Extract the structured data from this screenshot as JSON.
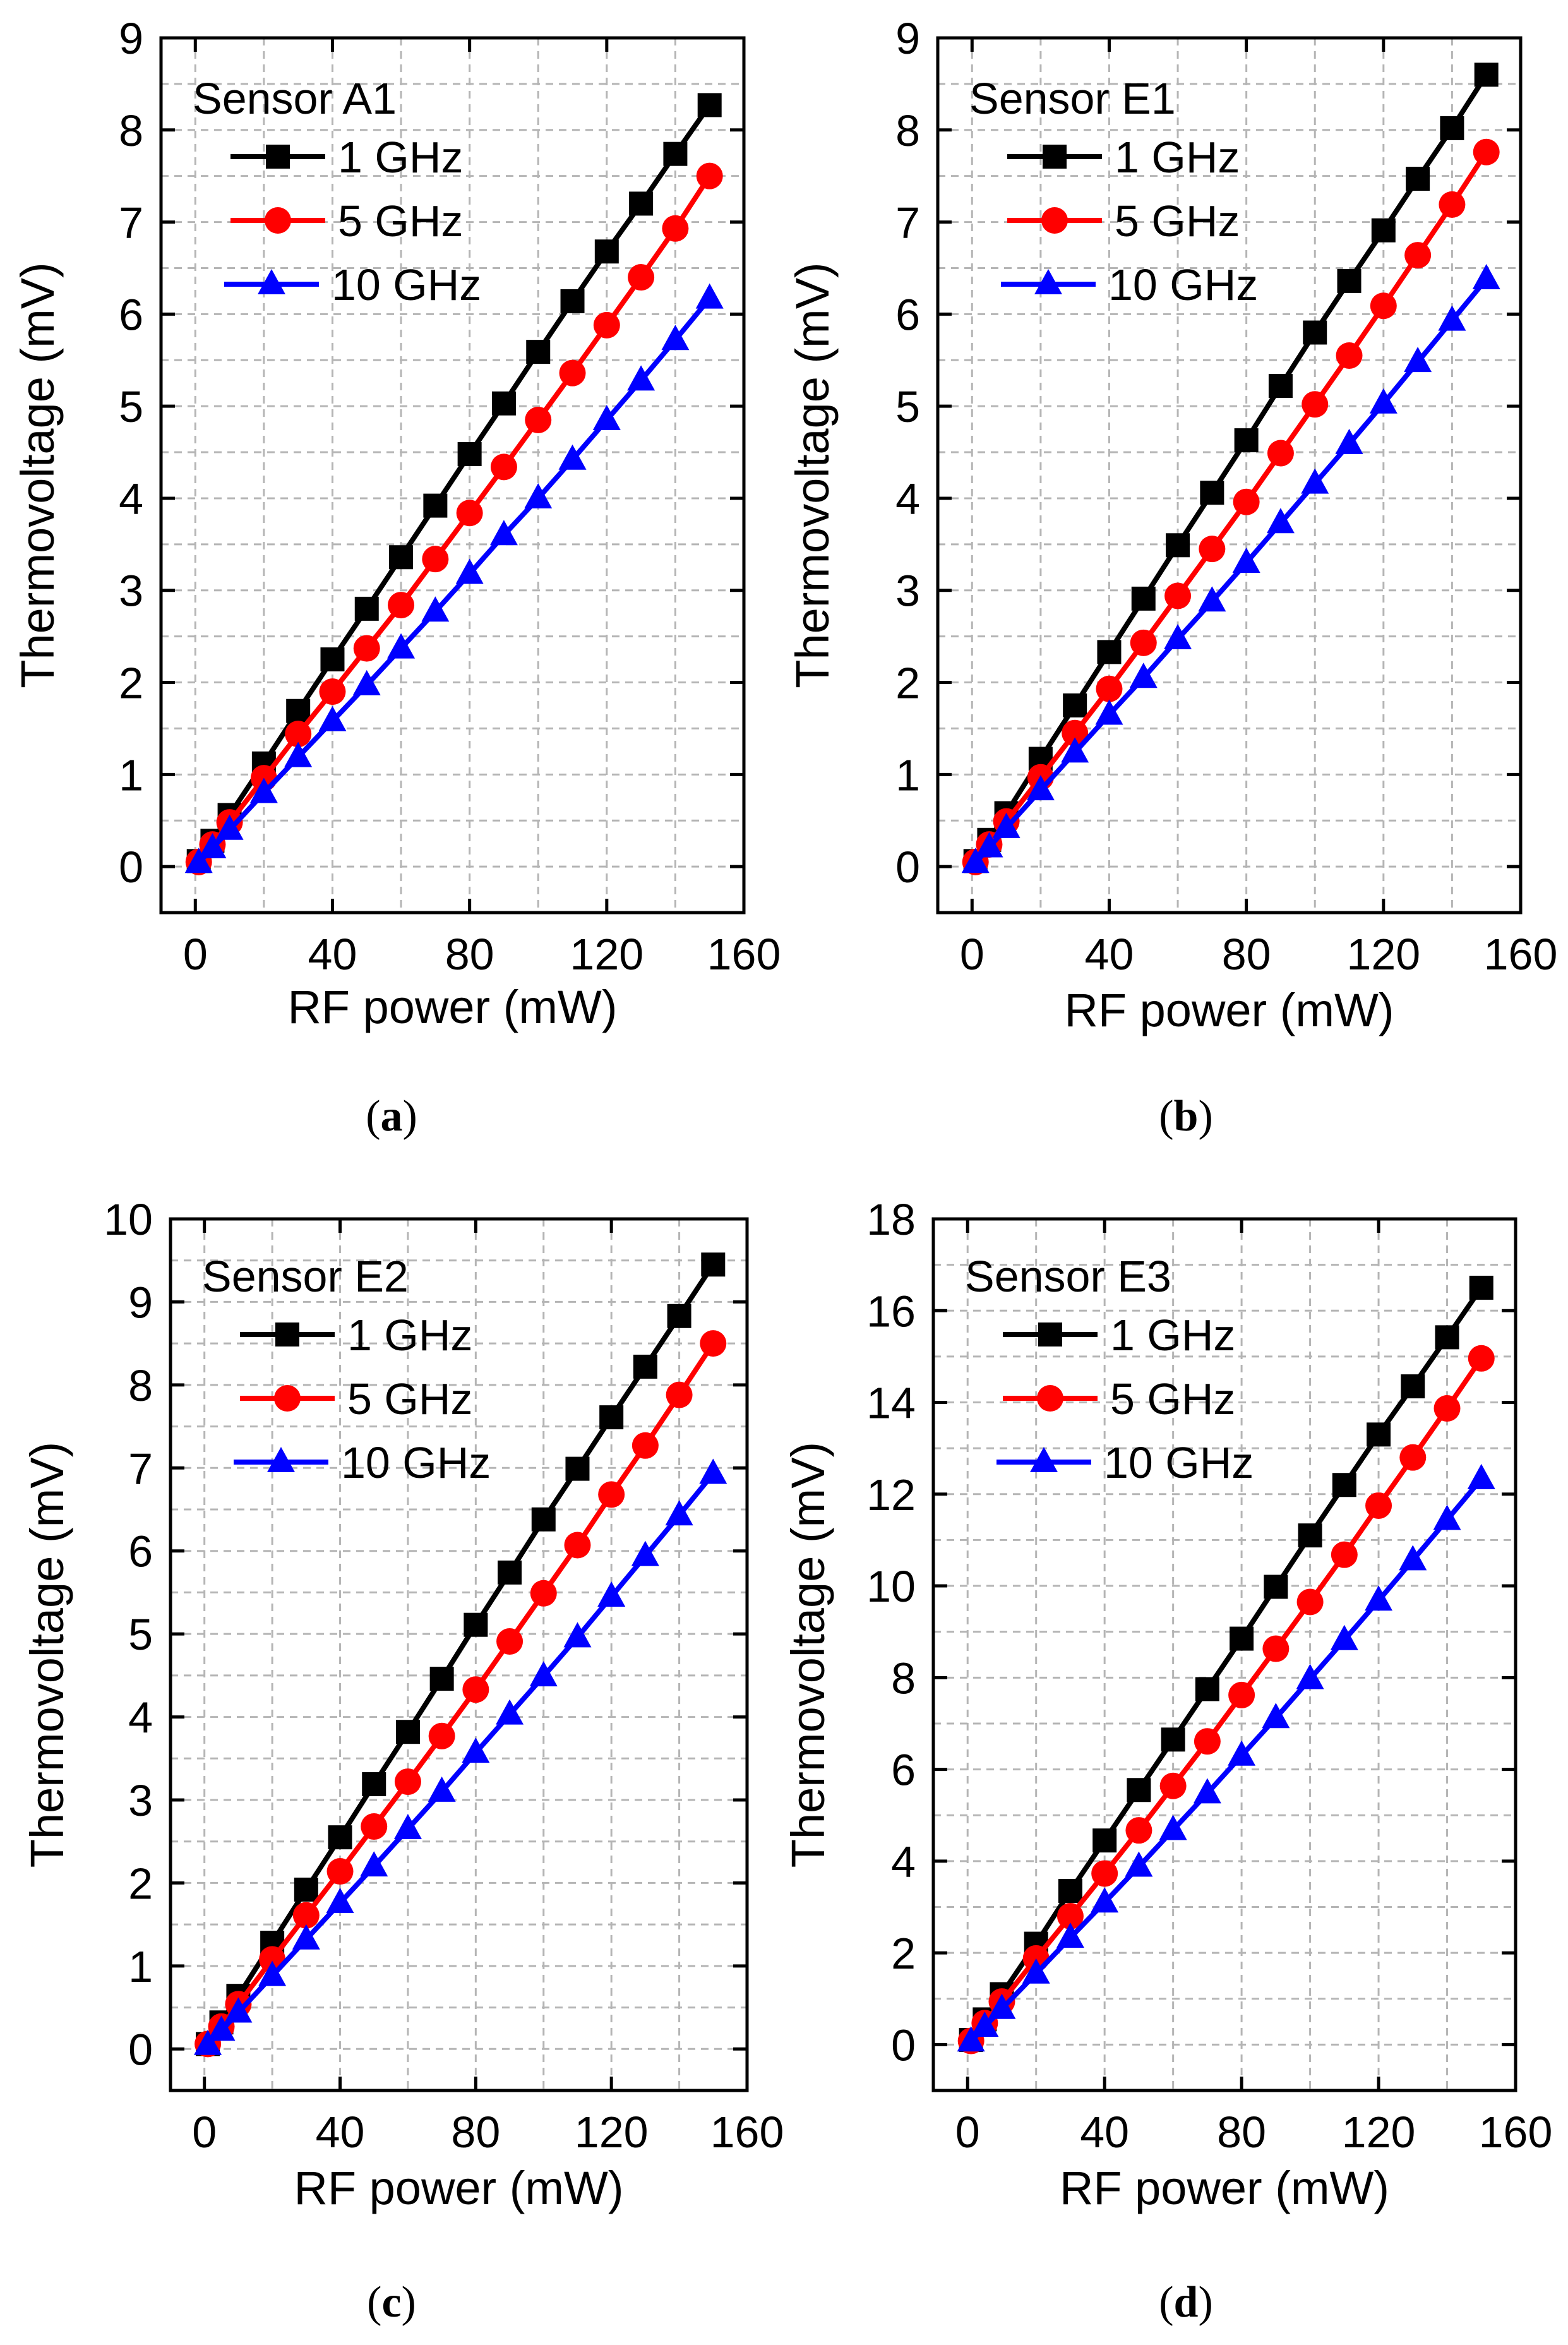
{
  "figure": {
    "panels": [
      "a",
      "b",
      "c",
      "d"
    ]
  },
  "chart_data": [
    {
      "type": "line",
      "panel_label": "(a)",
      "caption_letter": "a",
      "sensor": "Sensor A1",
      "xlabel": "RF power (mW)",
      "ylabel": "Thermovoltage (mV)",
      "xlim": [
        -10,
        160
      ],
      "ylim": [
        -0.5,
        9
      ],
      "xticks": [
        0,
        40,
        80,
        120,
        160
      ],
      "yticks": [
        0,
        1,
        2,
        3,
        4,
        5,
        6,
        7,
        8,
        9
      ],
      "x": [
        1,
        5,
        10,
        20,
        30,
        40,
        50,
        60,
        70,
        80,
        90,
        100,
        110,
        120,
        130,
        140,
        150
      ],
      "series": [
        {
          "name": "1 GHz",
          "color": "#000000",
          "marker": "square",
          "values": [
            0.06,
            0.28,
            0.56,
            1.12,
            1.69,
            2.25,
            2.8,
            3.36,
            3.92,
            4.48,
            5.03,
            5.59,
            6.14,
            6.68,
            7.2,
            7.74,
            8.27
          ]
        },
        {
          "name": "5 GHz",
          "color": "#ff0000",
          "marker": "circle",
          "values": [
            0.05,
            0.24,
            0.48,
            0.96,
            1.44,
            1.9,
            2.37,
            2.84,
            3.34,
            3.84,
            4.34,
            4.85,
            5.36,
            5.88,
            6.4,
            6.93,
            7.5
          ]
        },
        {
          "name": "10 GHz",
          "color": "#0000ff",
          "marker": "triangle",
          "values": [
            0.04,
            0.2,
            0.4,
            0.8,
            1.19,
            1.58,
            1.97,
            2.37,
            2.77,
            3.18,
            3.6,
            4.0,
            4.42,
            4.85,
            5.28,
            5.72,
            6.17
          ]
        }
      ]
    },
    {
      "type": "line",
      "panel_label": "(b)",
      "caption_letter": "b",
      "sensor": "Sensor E1",
      "xlabel": "RF power (mW)",
      "ylabel": "Thermovoltage (mV)",
      "xlim": [
        -10,
        160
      ],
      "ylim": [
        -0.5,
        9
      ],
      "xticks": [
        0,
        40,
        80,
        120,
        160
      ],
      "yticks": [
        0,
        1,
        2,
        3,
        4,
        5,
        6,
        7,
        8,
        9
      ],
      "x": [
        1,
        5,
        10,
        20,
        30,
        40,
        50,
        60,
        70,
        80,
        90,
        100,
        110,
        120,
        130,
        140,
        150
      ],
      "series": [
        {
          "name": "1 GHz",
          "color": "#000000",
          "marker": "square",
          "values": [
            0.06,
            0.29,
            0.58,
            1.17,
            1.75,
            2.33,
            2.91,
            3.49,
            4.06,
            4.63,
            5.22,
            5.8,
            6.36,
            6.91,
            7.47,
            8.02,
            8.6
          ]
        },
        {
          "name": "5 GHz",
          "color": "#ff0000",
          "marker": "circle",
          "values": [
            0.05,
            0.24,
            0.49,
            0.97,
            1.45,
            1.93,
            2.43,
            2.94,
            3.45,
            3.96,
            4.49,
            5.02,
            5.55,
            6.09,
            6.64,
            7.19,
            7.76
          ]
        },
        {
          "name": "10 GHz",
          "color": "#0000ff",
          "marker": "triangle",
          "values": [
            0.04,
            0.21,
            0.42,
            0.83,
            1.24,
            1.65,
            2.05,
            2.47,
            2.88,
            3.3,
            3.73,
            4.16,
            4.59,
            5.03,
            5.48,
            5.93,
            6.38
          ]
        }
      ]
    },
    {
      "type": "line",
      "panel_label": "(c)",
      "caption_letter": "c",
      "sensor": "Sensor E2",
      "xlabel": "RF power (mW)",
      "ylabel": "Thermovoltage (mV)",
      "xlim": [
        -10,
        160
      ],
      "ylim": [
        -0.5,
        10
      ],
      "xticks": [
        0,
        40,
        80,
        120,
        160
      ],
      "yticks": [
        0,
        1,
        2,
        3,
        4,
        5,
        6,
        7,
        8,
        9,
        10
      ],
      "x": [
        1,
        5,
        10,
        20,
        30,
        40,
        50,
        60,
        70,
        80,
        90,
        100,
        110,
        120,
        130,
        140,
        150
      ],
      "series": [
        {
          "name": "1 GHz",
          "color": "#000000",
          "marker": "square",
          "values": [
            0.06,
            0.32,
            0.64,
            1.28,
            1.92,
            2.55,
            3.19,
            3.82,
            4.46,
            5.11,
            5.74,
            6.38,
            6.99,
            7.61,
            8.22,
            8.83,
            9.45
          ]
        },
        {
          "name": "5 GHz",
          "color": "#ff0000",
          "marker": "circle",
          "values": [
            0.06,
            0.27,
            0.54,
            1.08,
            1.61,
            2.14,
            2.68,
            3.22,
            3.77,
            4.33,
            4.91,
            5.49,
            6.07,
            6.68,
            7.27,
            7.88,
            8.5
          ]
        },
        {
          "name": "10 GHz",
          "color": "#0000ff",
          "marker": "triangle",
          "values": [
            0.05,
            0.22,
            0.44,
            0.88,
            1.32,
            1.76,
            2.2,
            2.65,
            3.1,
            3.57,
            4.03,
            4.49,
            4.96,
            5.45,
            5.94,
            6.43,
            6.93
          ]
        }
      ]
    },
    {
      "type": "line",
      "panel_label": "(d)",
      "caption_letter": "d",
      "sensor": "Sensor E3",
      "xlabel": "RF power (mW)",
      "ylabel": "Thermovoltage (mV)",
      "xlim": [
        -10,
        160
      ],
      "ylim": [
        -1,
        18
      ],
      "xticks": [
        0,
        40,
        80,
        120,
        160
      ],
      "yticks": [
        0,
        2,
        4,
        6,
        8,
        10,
        12,
        14,
        16,
        18
      ],
      "x": [
        1,
        5,
        10,
        20,
        30,
        40,
        50,
        60,
        70,
        80,
        90,
        100,
        110,
        120,
        130,
        140,
        150
      ],
      "series": [
        {
          "name": "1 GHz",
          "color": "#000000",
          "marker": "square",
          "values": [
            0.1,
            0.55,
            1.1,
            2.2,
            3.35,
            4.45,
            5.55,
            6.65,
            7.75,
            8.85,
            9.98,
            11.1,
            12.2,
            13.3,
            14.35,
            15.42,
            16.5
          ]
        },
        {
          "name": "5 GHz",
          "color": "#ff0000",
          "marker": "circle",
          "values": [
            0.08,
            0.47,
            0.94,
            1.88,
            2.8,
            3.73,
            4.67,
            5.64,
            6.61,
            7.62,
            8.63,
            9.65,
            10.68,
            11.75,
            12.8,
            13.87,
            14.96
          ]
        },
        {
          "name": "10 GHz",
          "color": "#0000ff",
          "marker": "triangle",
          "values": [
            0.07,
            0.39,
            0.78,
            1.55,
            2.33,
            3.1,
            3.88,
            4.68,
            5.48,
            6.3,
            7.12,
            7.97,
            8.82,
            9.68,
            10.56,
            11.44,
            12.33
          ]
        }
      ]
    }
  ]
}
